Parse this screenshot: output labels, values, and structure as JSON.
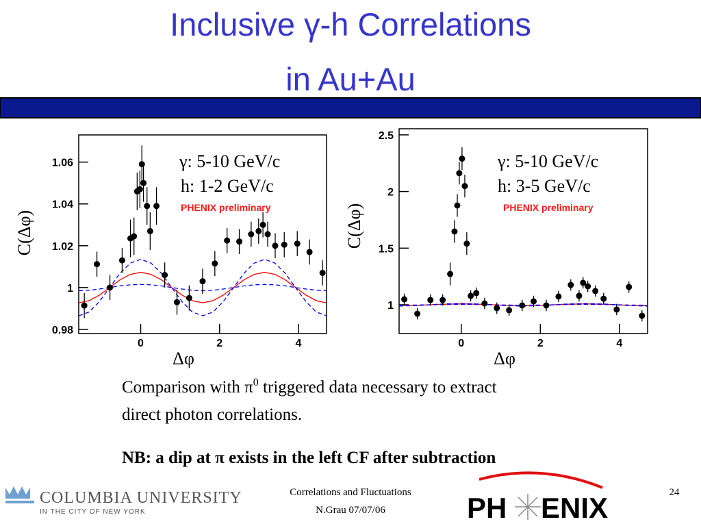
{
  "header": {
    "title_line1": "Inclusive γ-h Correlations",
    "title_line2": "in Au+Au"
  },
  "chart_data": [
    {
      "type": "scatter",
      "y_label": "C(Δφ)",
      "x_label": "Δφ",
      "annotations": [
        "γ: 5-10 GeV/c",
        "h: 1-2 GeV/c",
        "PHENIX preliminary"
      ],
      "xlim": [
        -1.571,
        4.712
      ],
      "ylim": [
        0.978,
        1.073
      ],
      "xticks": [
        0,
        2,
        4
      ],
      "yticks": [
        0.98,
        1,
        1.02,
        1.04,
        1.06
      ],
      "color": "#000000",
      "x": [
        -1.43,
        -1.11,
        -0.78,
        -0.47,
        -0.26,
        -0.17,
        -0.09,
        -0.02,
        0.03,
        0.07,
        0.16,
        0.24,
        0.4,
        0.61,
        0.92,
        1.23,
        1.57,
        1.88,
        2.19,
        2.5,
        2.8,
        2.99,
        3.1,
        3.22,
        3.41,
        3.64,
        3.97,
        4.28,
        4.61
      ],
      "y": [
        0.9914,
        1.0112,
        1.0,
        1.013,
        1.0235,
        1.0245,
        1.046,
        1.047,
        1.059,
        1.05,
        1.039,
        1.027,
        1.039,
        1.006,
        0.993,
        0.995,
        1.003,
        1.0115,
        1.0225,
        1.022,
        1.0255,
        1.027,
        1.03,
        1.0255,
        1.02,
        1.0205,
        1.021,
        1.017,
        1.007
      ],
      "errors": [
        0.006,
        0.006,
        0.006,
        0.006,
        0.009,
        0.009,
        0.009,
        0.009,
        0.009,
        0.009,
        0.009,
        0.009,
        0.009,
        0.006,
        0.006,
        0.006,
        0.006,
        0.006,
        0.006,
        0.006,
        0.006,
        0.006,
        0.006,
        0.006,
        0.006,
        0.006,
        0.006,
        0.006,
        0.006
      ],
      "curve_x": [
        -1.571,
        -1.309,
        -1.047,
        -0.785,
        -0.524,
        -0.262,
        0,
        0.262,
        0.524,
        0.785,
        1.047,
        1.309,
        1.571,
        1.833,
        2.094,
        2.356,
        2.618,
        2.88,
        3.142,
        3.403,
        3.665,
        3.927,
        4.189,
        4.451,
        4.712
      ],
      "curves": [
        {
          "color": "#ff0000",
          "dashed": false,
          "values": [
            0.9927,
            0.9937,
            0.9964,
            1.0,
            1.0037,
            1.0063,
            1.0073,
            1.0063,
            1.0037,
            1.0,
            0.9964,
            0.9937,
            0.9927,
            0.9937,
            0.9964,
            1.0,
            1.0037,
            1.0063,
            1.0073,
            1.0063,
            1.0037,
            1.0,
            0.9964,
            0.9937,
            0.9927
          ]
        },
        {
          "color": "#0000ff",
          "dashed": true,
          "values": [
            0.9865,
            0.9883,
            0.9933,
            1.0,
            1.0068,
            1.0117,
            1.0135,
            1.0117,
            1.0068,
            1.0,
            0.9933,
            0.9883,
            0.9865,
            0.9883,
            0.9933,
            1.0,
            1.0068,
            1.0117,
            1.0135,
            1.0117,
            1.0068,
            1.0,
            0.9933,
            0.9883,
            0.9865
          ]
        },
        {
          "color": "#0000ff",
          "dashed": true,
          "values": [
            0.9985,
            0.9987,
            0.9993,
            1.0,
            1.0008,
            1.0013,
            1.0015,
            1.0013,
            1.0008,
            1.0,
            0.9993,
            0.9987,
            0.9985,
            0.9987,
            0.9993,
            1.0,
            1.0008,
            1.0013,
            1.0015,
            1.0013,
            1.0008,
            1.0,
            0.9993,
            0.9987,
            0.9985
          ]
        }
      ]
    },
    {
      "type": "scatter",
      "y_label": "C(Δφ)",
      "x_label": "Δφ",
      "annotations": [
        "γ: 5-10 GeV/c",
        "h: 3-5 GeV/c",
        "PHENIX preliminary"
      ],
      "xlim": [
        -1.571,
        4.712
      ],
      "ylim": [
        0.746,
        2.554
      ],
      "xticks": [
        0,
        2,
        4
      ],
      "yticks": [
        1,
        1.5,
        2,
        2.5
      ],
      "color": "#000000",
      "x": [
        -1.44,
        -1.11,
        -0.78,
        -0.47,
        -0.28,
        -0.17,
        -0.1,
        -0.05,
        0.02,
        0.09,
        0.14,
        0.24,
        0.38,
        0.59,
        0.9,
        1.21,
        1.54,
        1.83,
        2.15,
        2.46,
        2.77,
        2.98,
        3.08,
        3.2,
        3.39,
        3.6,
        3.93,
        4.24,
        4.57
      ],
      "y": [
        1.048,
        0.921,
        1.042,
        1.042,
        1.272,
        1.647,
        1.877,
        2.162,
        2.29,
        2.048,
        1.54,
        1.079,
        1.103,
        1.012,
        0.97,
        0.952,
        0.994,
        1.03,
        0.994,
        1.073,
        1.175,
        1.079,
        1.194,
        1.163,
        1.121,
        1.054,
        0.958,
        1.157,
        0.903
      ],
      "errors": [
        0.05,
        0.05,
        0.05,
        0.05,
        0.1,
        0.1,
        0.1,
        0.1,
        0.1,
        0.1,
        0.1,
        0.05,
        0.05,
        0.05,
        0.05,
        0.05,
        0.05,
        0.05,
        0.05,
        0.05,
        0.05,
        0.05,
        0.05,
        0.05,
        0.05,
        0.05,
        0.05,
        0.05,
        0.05
      ],
      "curve_x": [
        -1.571,
        -1.047,
        -0.524,
        0,
        0.524,
        1.047,
        1.571,
        2.094,
        2.618,
        3.142,
        3.665,
        4.189,
        4.712
      ],
      "curves": [
        {
          "color": "#ff0000",
          "dashed": false,
          "values": [
            0.992,
            0.996,
            1.004,
            1.008,
            1.004,
            0.996,
            0.992,
            0.996,
            1.004,
            1.008,
            1.004,
            0.996,
            0.992
          ]
        },
        {
          "color": "#0000ff",
          "dashed": true,
          "values": [
            0.988,
            0.994,
            1.006,
            1.012,
            1.006,
            0.994,
            0.988,
            0.994,
            1.006,
            1.012,
            1.006,
            0.994,
            0.988
          ]
        },
        {
          "color": "#0000ff",
          "dashed": true,
          "values": [
            0.996,
            0.998,
            1.002,
            1.004,
            1.002,
            0.998,
            0.996,
            0.998,
            1.002,
            1.004,
            1.002,
            0.998,
            0.996
          ]
        }
      ]
    }
  ],
  "body": {
    "line1": [
      "Comparison with π",
      "0",
      " triggered data necessary to extract"
    ],
    "line2": "direct photon correlations.",
    "note": "NB: a dip at π exists in the left CF after subtraction"
  },
  "footer": {
    "university": "COLUMBIA UNIVERSITY",
    "university_sub": "IN THE CITY OF NEW YORK",
    "center_line1": "Correlations and Fluctuations",
    "center_line2": "N.Grau 07/07/06",
    "page": "24",
    "logo_left": "PH",
    "logo_right": "ENIX"
  }
}
